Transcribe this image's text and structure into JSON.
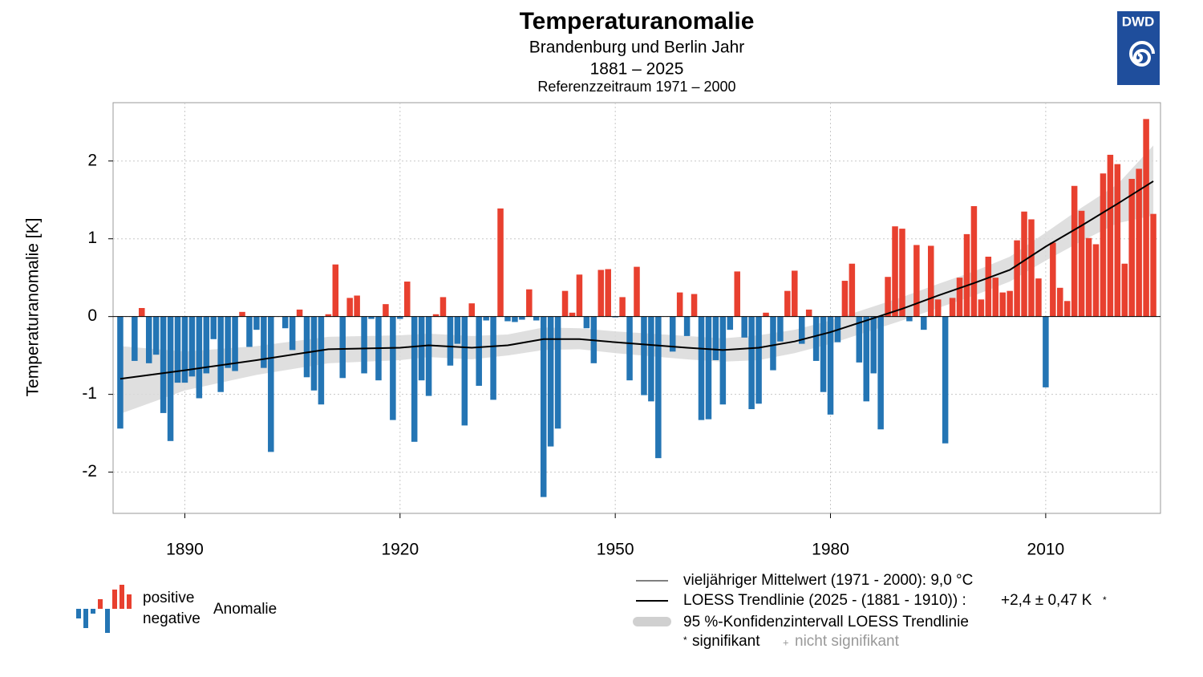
{
  "chart_data": {
    "type": "bar",
    "title": "Temperaturanomalie",
    "subtitle": [
      "Brandenburg und Berlin Jahr",
      "1881 – 2025",
      "Referenzzeitraum 1971 – 2000"
    ],
    "y_label": "Temperaturanomalie [K]",
    "logo": "DWD",
    "x": [
      1881,
      1882,
      1883,
      1884,
      1885,
      1886,
      1887,
      1888,
      1889,
      1890,
      1891,
      1892,
      1893,
      1894,
      1895,
      1896,
      1897,
      1898,
      1899,
      1900,
      1901,
      1902,
      1903,
      1904,
      1905,
      1906,
      1907,
      1908,
      1909,
      1910,
      1911,
      1912,
      1913,
      1914,
      1915,
      1916,
      1917,
      1918,
      1919,
      1920,
      1921,
      1922,
      1923,
      1924,
      1925,
      1926,
      1927,
      1928,
      1929,
      1930,
      1931,
      1932,
      1933,
      1934,
      1935,
      1936,
      1937,
      1938,
      1939,
      1940,
      1941,
      1942,
      1943,
      1944,
      1945,
      1946,
      1947,
      1948,
      1949,
      1950,
      1951,
      1952,
      1953,
      1954,
      1955,
      1956,
      1957,
      1958,
      1959,
      1960,
      1961,
      1962,
      1963,
      1964,
      1965,
      1966,
      1967,
      1968,
      1969,
      1970,
      1971,
      1972,
      1973,
      1974,
      1975,
      1976,
      1977,
      1978,
      1979,
      1980,
      1981,
      1982,
      1983,
      1984,
      1985,
      1986,
      1987,
      1988,
      1989,
      1990,
      1991,
      1992,
      1993,
      1994,
      1995,
      1996,
      1997,
      1998,
      1999,
      2000,
      2001,
      2002,
      2003,
      2004,
      2005,
      2006,
      2007,
      2008,
      2009,
      2010,
      2011,
      2012,
      2013,
      2014,
      2015,
      2016,
      2017,
      2018,
      2019,
      2020,
      2021,
      2022,
      2023,
      2024,
      2025
    ],
    "values": [
      -1.44,
      0,
      -0.57,
      0.11,
      -0.6,
      -0.49,
      -1.24,
      -1.6,
      -0.85,
      -0.85,
      -0.77,
      -1.05,
      -0.73,
      -0.29,
      -0.97,
      -0.66,
      -0.7,
      0.06,
      -0.39,
      -0.17,
      -0.66,
      -1.74,
      0,
      -0.15,
      -0.43,
      0.09,
      -0.78,
      -0.95,
      -1.13,
      0.03,
      0.67,
      -0.79,
      0.24,
      0.27,
      -0.73,
      -0.03,
      -0.82,
      0.16,
      -1.33,
      -0.03,
      0.45,
      -1.61,
      -0.82,
      -1.02,
      0.03,
      0.25,
      -0.63,
      -0.35,
      -1.4,
      0.17,
      -0.89,
      -0.05,
      -1.07,
      1.39,
      -0.06,
      -0.07,
      -0.04,
      0.35,
      -0.05,
      -2.32,
      -1.67,
      -1.44,
      0.33,
      0.05,
      0.54,
      -0.15,
      -0.6,
      0.6,
      0.61,
      -0.01,
      0.25,
      -0.82,
      0.64,
      -1.01,
      -1.09,
      -1.82,
      0,
      -0.45,
      0.31,
      -0.25,
      0.29,
      -1.33,
      -1.32,
      -0.56,
      -1.13,
      -0.17,
      0.58,
      -0.27,
      -1.19,
      -1.12,
      0.05,
      -0.69,
      -0.32,
      0.33,
      0.59,
      -0.35,
      0.09,
      -0.57,
      -0.97,
      -1.26,
      -0.33,
      0.46,
      0.68,
      -0.59,
      -1.09,
      -0.73,
      -1.45,
      0.51,
      1.16,
      1.13,
      -0.06,
      0.92,
      -0.17,
      0.91,
      0.22,
      -1.63,
      0.24,
      0.5,
      1.06,
      1.42,
      0.22,
      0.77,
      0.5,
      0.31,
      0.33,
      0.98,
      1.35,
      1.25,
      0.49,
      -0.91,
      0.95,
      0.37,
      0.2,
      1.68,
      1.36,
      1.01,
      0.93,
      1.84,
      2.08,
      1.96,
      0.68,
      1.77,
      1.9,
      2.54,
      1.32
    ],
    "positive_color": "#e8402f",
    "negative_color": "#2475b4",
    "trend": {
      "color": "#000000",
      "band_color": "#d9d9d9",
      "x": [
        1881,
        1890,
        1900,
        1910,
        1920,
        1924,
        1930,
        1935,
        1940,
        1945,
        1950,
        1960,
        1965,
        1970,
        1975,
        1980,
        1985,
        1990,
        1995,
        2000,
        2005,
        2010,
        2015,
        2020,
        2025
      ],
      "values": [
        -0.8,
        -0.69,
        -0.56,
        -0.42,
        -0.4,
        -0.37,
        -0.4,
        -0.37,
        -0.29,
        -0.29,
        -0.33,
        -0.4,
        -0.43,
        -0.4,
        -0.32,
        -0.2,
        -0.05,
        0.1,
        0.27,
        0.43,
        0.6,
        0.9,
        1.17,
        1.45,
        1.74
      ],
      "ci_lower": [
        -1.25,
        -0.95,
        -0.75,
        -0.6,
        -0.56,
        -0.52,
        -0.55,
        -0.5,
        -0.43,
        -0.42,
        -0.47,
        -0.55,
        -0.58,
        -0.56,
        -0.47,
        -0.35,
        -0.2,
        -0.05,
        0.11,
        0.27,
        0.45,
        0.72,
        0.97,
        1.2,
        1.3
      ],
      "ci_upper": [
        -0.38,
        -0.45,
        -0.38,
        -0.26,
        -0.24,
        -0.22,
        -0.25,
        -0.23,
        -0.14,
        -0.15,
        -0.19,
        -0.25,
        -0.28,
        -0.24,
        -0.17,
        -0.05,
        0.1,
        0.25,
        0.42,
        0.58,
        0.77,
        1.08,
        1.4,
        1.7,
        2.2
      ]
    },
    "xlim": [
      1880,
      2026
    ],
    "ylim": [
      -2.53,
      2.75
    ],
    "xticks": [
      1890,
      1920,
      1950,
      1980,
      2010
    ],
    "yticks": [
      -2,
      -1,
      0,
      1,
      2
    ],
    "grid": true,
    "legend_left": {
      "positive": "positive",
      "negative": "negative",
      "label": "Anomalie"
    },
    "legend_right": {
      "mean": "vieljähriger Mittelwert (1971 - 2000): 9,0 °C",
      "trend": "LOESS Trendlinie (2025 - (1881 - 1910)) :",
      "trend_value": "+2,4 ± 0,47 K",
      "trend_sig": "*",
      "ci": "95 %-Konfidenzintervall LOESS Trendlinie",
      "sig_mark": "*",
      "sig": "signifikant",
      "nonsig_mark": "+",
      "nonsig": "nicht signifikant"
    }
  }
}
